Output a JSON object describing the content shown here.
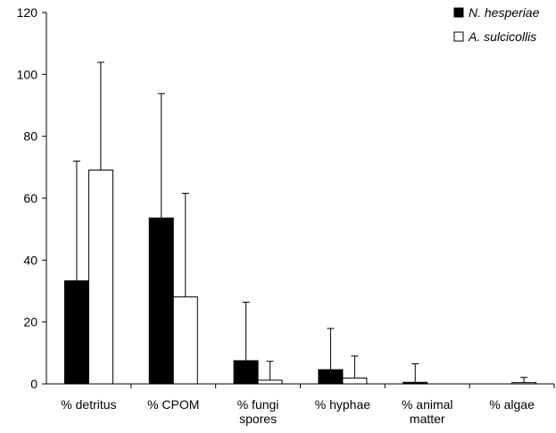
{
  "chart_data": {
    "type": "bar",
    "categories": [
      [
        "% detritus"
      ],
      [
        "% CPOM"
      ],
      [
        "% fungi",
        "spores"
      ],
      [
        "% hyphae"
      ],
      [
        "% animal",
        "matter"
      ],
      [
        "% algae"
      ]
    ],
    "series": [
      {
        "name": "N. hesperiae",
        "color": "#000000",
        "values": [
          33.3,
          53.6,
          7.5,
          4.6,
          0.5,
          0
        ],
        "error_upper": [
          72,
          93.8,
          26.4,
          17.9,
          6.5,
          0
        ]
      },
      {
        "name": "A. sulcicollis",
        "color": "#ffffff",
        "values": [
          69.1,
          28.1,
          1.2,
          1.9,
          0,
          0.4
        ],
        "error_upper": [
          103.9,
          61.6,
          7.3,
          9,
          0,
          2.1
        ]
      }
    ],
    "ylim": [
      0,
      120
    ],
    "yticks": [
      0,
      20,
      40,
      60,
      80,
      100,
      120
    ],
    "legend_position": "top-right",
    "grid": false
  }
}
